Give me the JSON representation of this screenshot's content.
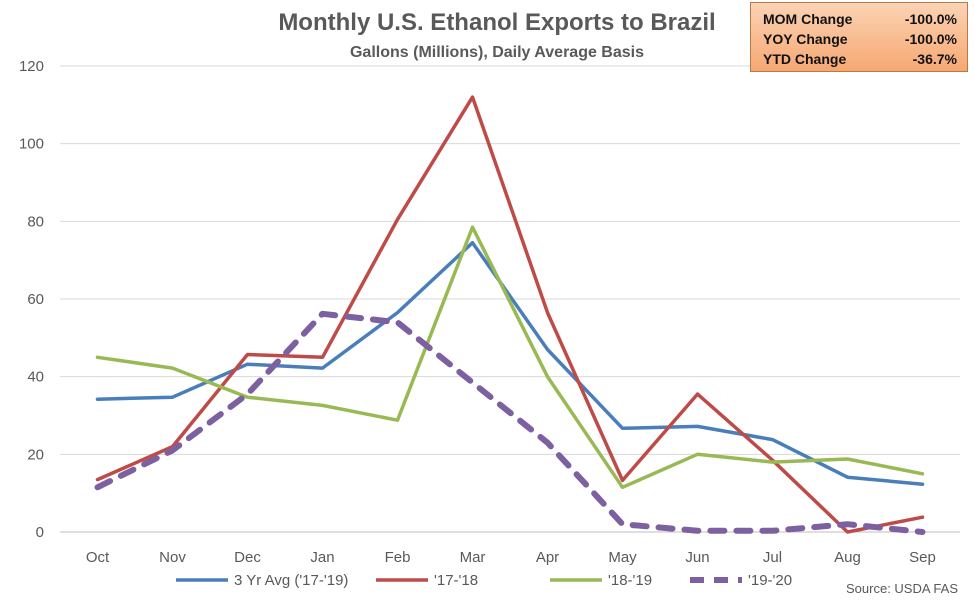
{
  "chart_data": {
    "type": "line",
    "title": "Monthly U.S. Ethanol Exports to Brazil",
    "subtitle": "Gallons (Millions), Daily Average Basis",
    "categories": [
      "Oct",
      "Nov",
      "Dec",
      "Jan",
      "Feb",
      "Mar",
      "Apr",
      "May",
      "Jun",
      "Jul",
      "Aug",
      "Sep"
    ],
    "ylim": [
      0,
      120
    ],
    "yticks": [
      0,
      20,
      40,
      60,
      80,
      100,
      120
    ],
    "grid": true,
    "legend_position": "bottom",
    "series": [
      {
        "name": "3 Yr Avg ('17-'19)",
        "color": "#4a7ebb",
        "dashed": false,
        "values": [
          34.2,
          34.7,
          43.2,
          42.2,
          56.5,
          74.5,
          47,
          26.7,
          27.2,
          23.8,
          14.1,
          12.3
        ]
      },
      {
        "name": "'17-'18",
        "color": "#be4b48",
        "dashed": false,
        "values": [
          13.5,
          22,
          45.7,
          45,
          80.5,
          112,
          56.5,
          13.3,
          35.5,
          18.5,
          0,
          3.8
        ]
      },
      {
        "name": "'18-'19",
        "color": "#98b954",
        "dashed": false,
        "values": [
          45,
          42.2,
          34.7,
          32.6,
          28.8,
          78.5,
          40,
          11.5,
          20,
          18,
          18.8,
          15
        ]
      },
      {
        "name": "'19-'20",
        "color": "#7d60a0",
        "dashed": true,
        "values": [
          11.5,
          21,
          35.5,
          56.2,
          54,
          38.5,
          23,
          2,
          0.3,
          0.3,
          2,
          0
        ]
      }
    ],
    "source": "Source: USDA FAS"
  },
  "stats": [
    {
      "label": "MOM Change",
      "value": "-100.0%"
    },
    {
      "label": "YOY Change",
      "value": "-100.0%"
    },
    {
      "label": "YTD Change",
      "value": "-36.7%"
    }
  ]
}
